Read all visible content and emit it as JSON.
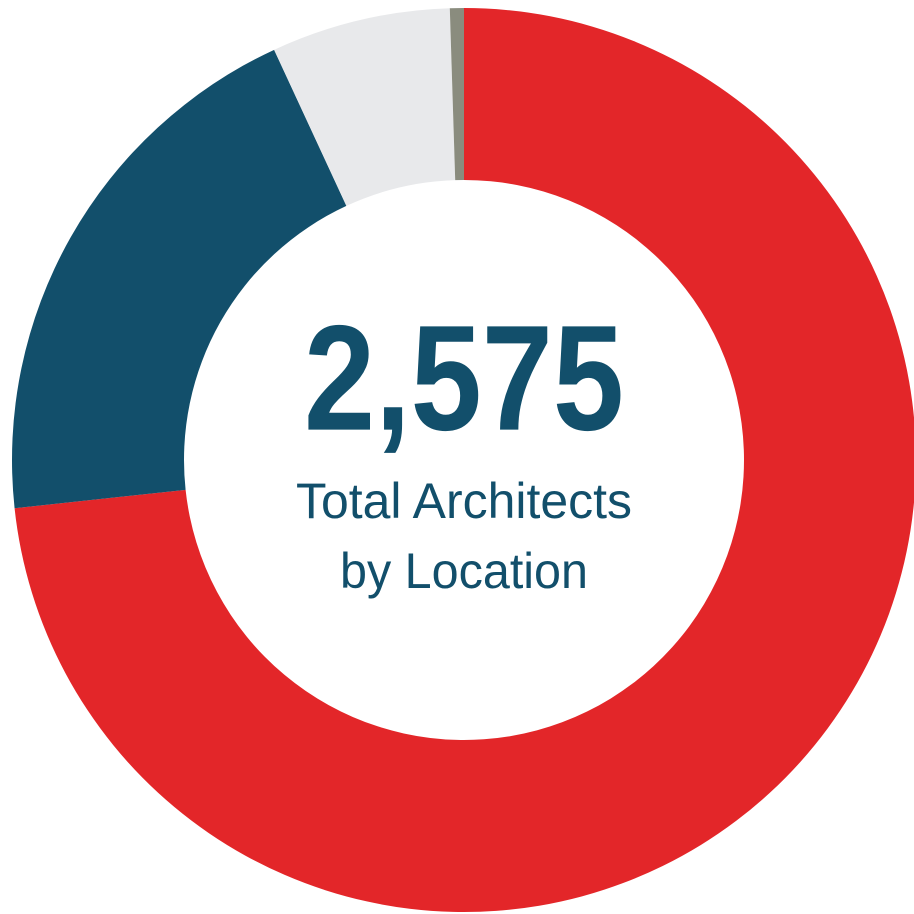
{
  "chart_data": {
    "type": "donut",
    "title": "2,575",
    "subtitle": [
      "Total Architects",
      "by Location"
    ],
    "values": [
      73.3,
      19.8,
      6.4,
      0.5
    ],
    "colors": [
      "#e32629",
      "#124f6b",
      "#e8e9eb",
      "#8a8c7e"
    ]
  }
}
